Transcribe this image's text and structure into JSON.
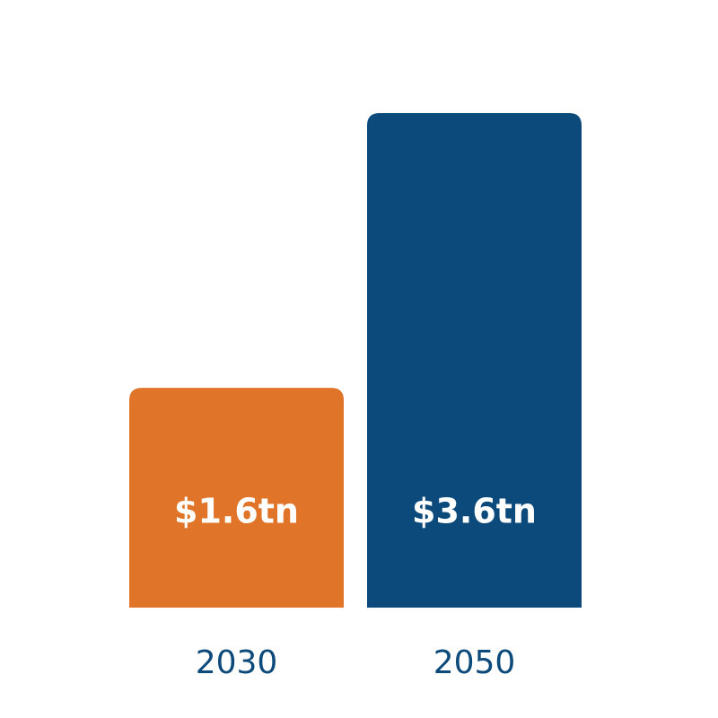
{
  "chart_data": {
    "type": "bar",
    "categories": [
      "2030",
      "2050"
    ],
    "values": [
      1.6,
      3.6
    ],
    "value_labels": [
      "$1.6tn",
      "$3.6tn"
    ],
    "title": "",
    "xlabel": "",
    "ylabel": "",
    "ylim": [
      0,
      3.6
    ],
    "grid": false,
    "legend": "none",
    "colors": [
      "#e07428",
      "#0b4a7a"
    ]
  }
}
